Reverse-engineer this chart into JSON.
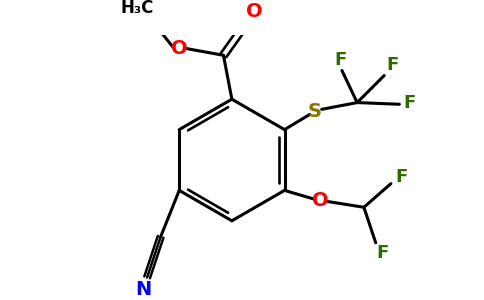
{
  "bg_color": "#FFFFFF",
  "bond_color": "#000000",
  "bond_width": 2.2,
  "colors": {
    "C": "#000000",
    "O": "#FF0000",
    "N": "#0000FF",
    "S": "#8B7500",
    "F": "#2E6B00",
    "H": "#000000"
  },
  "figsize": [
    4.84,
    3.0
  ],
  "dpi": 100,
  "xlim": [
    0,
    484
  ],
  "ylim": [
    0,
    300
  ]
}
